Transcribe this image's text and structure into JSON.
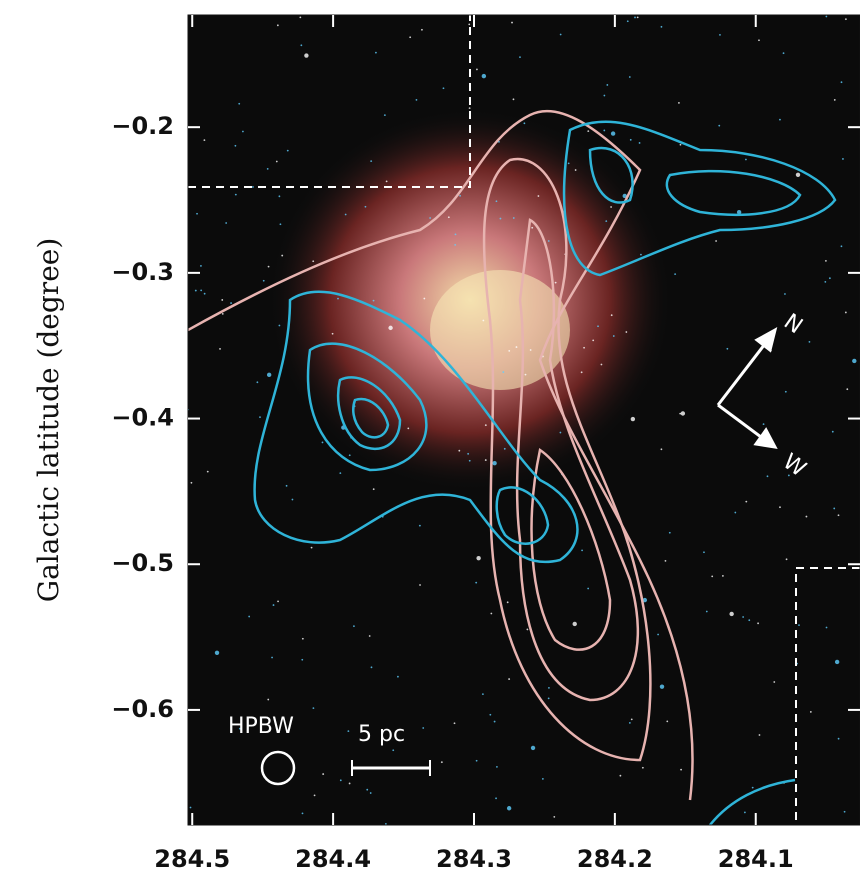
{
  "chart_data": {
    "type": "image",
    "ylabel": "Galactic latitude (degree)",
    "xlim": [
      284.503,
      284.026
    ],
    "xticks": [
      284.5,
      284.4,
      284.3,
      284.2,
      284.1
    ],
    "ylim": [
      -0.679,
      -0.123
    ],
    "yticks": [
      {
        "value": -0.2,
        "label": "−0.2"
      },
      {
        "value": -0.3,
        "label": "−0.3"
      },
      {
        "value": -0.4,
        "label": "−0.4"
      },
      {
        "value": -0.5,
        "label": "−0.5"
      },
      {
        "value": -0.6,
        "label": "−0.6"
      }
    ],
    "annotations": {
      "beam": "HPBW",
      "scale": "5 pc",
      "north": "N",
      "west": "W"
    }
  }
}
